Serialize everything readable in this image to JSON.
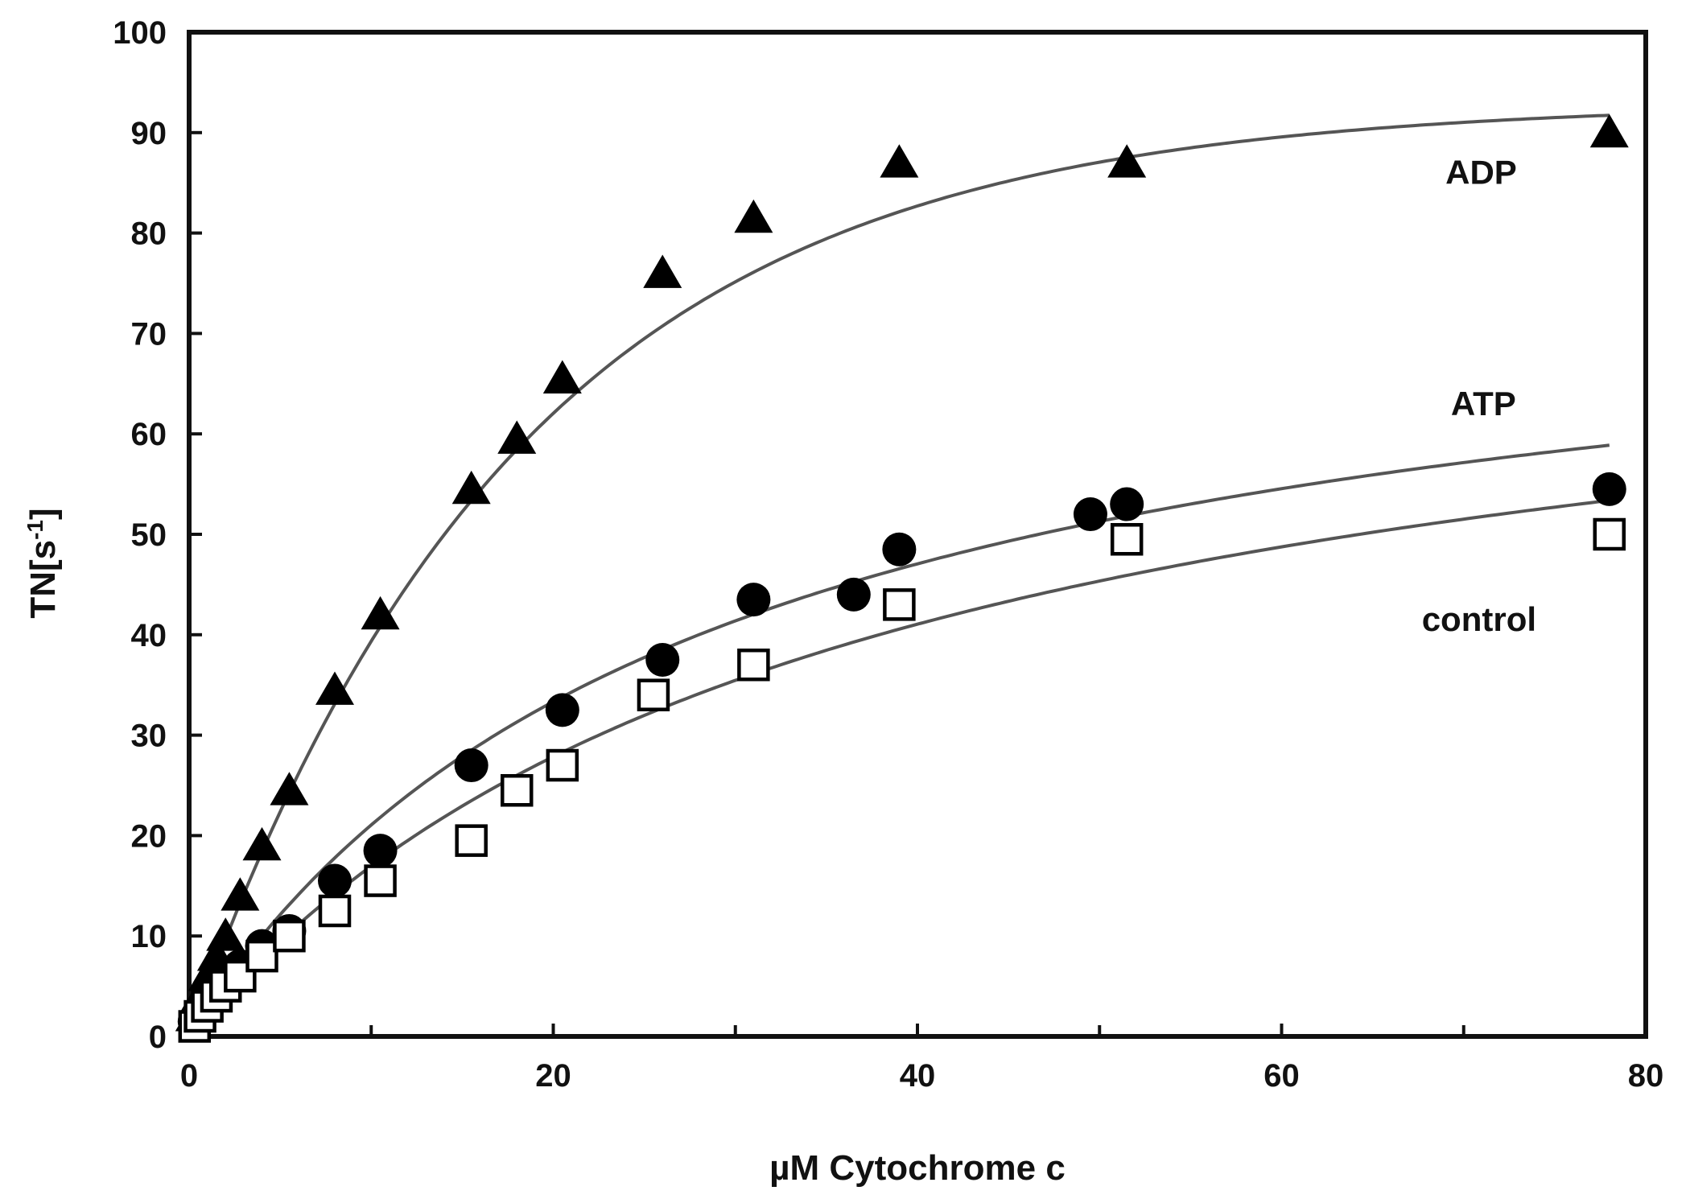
{
  "chart_data": {
    "type": "scatter",
    "title": "",
    "xlabel": "µM Cytochrome c",
    "ylabel_base": "TN[s",
    "ylabel_sup": "-1",
    "ylabel_close": "]",
    "xlim": [
      0,
      80
    ],
    "ylim": [
      0,
      100
    ],
    "x_ticks": [
      0,
      20,
      40,
      60,
      80
    ],
    "x_tick_labels": [
      "0",
      "20",
      "40",
      "60",
      "80"
    ],
    "x_minor_ticks": [
      10,
      30,
      50,
      70
    ],
    "y_ticks": [
      0,
      10,
      20,
      30,
      40,
      50,
      60,
      70,
      80,
      90,
      100
    ],
    "y_tick_labels": [
      "0",
      "10",
      "20",
      "30",
      "40",
      "50",
      "60",
      "70",
      "80",
      "90",
      "100"
    ],
    "grid": false,
    "annotations": [
      {
        "text": "ADP",
        "x": 69,
        "y": 86
      },
      {
        "text": "ATP",
        "x": 69.3,
        "y": 63
      },
      {
        "text": "control",
        "x": 67.7,
        "y": 41.5
      }
    ],
    "series": [
      {
        "name": "ADP",
        "marker": "triangle",
        "x": [
          0.3,
          0.6,
          1.0,
          1.5,
          2.0,
          2.8,
          4.0,
          5.5,
          8.0,
          10.5,
          15.5,
          18.0,
          20.5,
          26.0,
          31.0,
          39.0,
          51.5,
          78.0
        ],
        "y": [
          2,
          4,
          6,
          8,
          10,
          14,
          19,
          24.5,
          34.5,
          42,
          54.5,
          59.5,
          65.5,
          76,
          81.5,
          87,
          87,
          90
        ],
        "fit": {
          "vmax": 93,
          "k": 0.055
        }
      },
      {
        "name": "ATP",
        "marker": "filled-circle",
        "x": [
          0.3,
          0.6,
          1.0,
          1.5,
          2.0,
          2.8,
          4.0,
          5.5,
          8.0,
          10.5,
          15.5,
          20.5,
          26.0,
          31.0,
          36.5,
          39.0,
          49.5,
          51.5,
          78.0
        ],
        "y": [
          1.5,
          2.5,
          3.5,
          4.5,
          5.5,
          7,
          9,
          10.5,
          15.5,
          18.5,
          27,
          32.5,
          37.5,
          43.5,
          44,
          48.5,
          52,
          53,
          54.5
        ],
        "fit": {
          "vmax": 80,
          "km": 28
        }
      },
      {
        "name": "control",
        "marker": "open-square",
        "x": [
          0.3,
          0.6,
          1.0,
          1.5,
          2.0,
          2.8,
          4.0,
          5.5,
          8.0,
          10.5,
          15.5,
          18.0,
          20.5,
          25.5,
          31.0,
          39.0,
          51.5,
          78.0
        ],
        "y": [
          1,
          2,
          3,
          4,
          5,
          6,
          8,
          10,
          12.5,
          15.5,
          19.5,
          24.5,
          27,
          34,
          37,
          43,
          49.5,
          50
        ],
        "fit": {
          "vmax": 78,
          "km": 36
        }
      }
    ]
  }
}
